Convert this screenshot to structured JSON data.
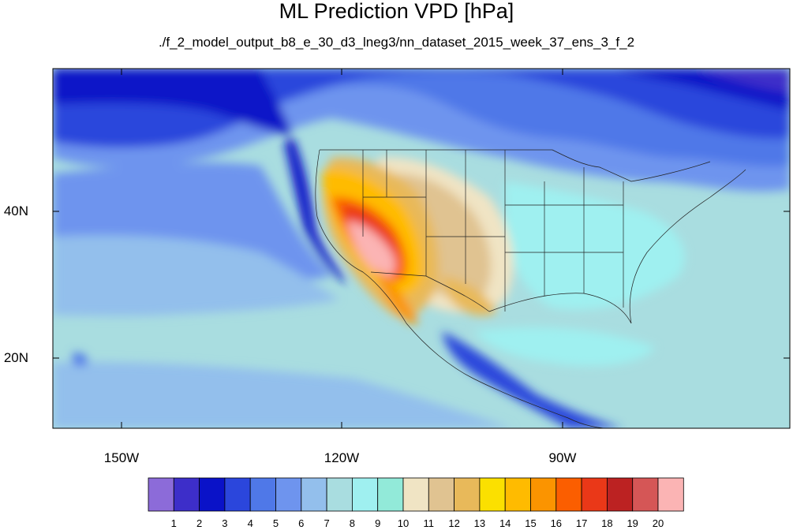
{
  "title": "ML Prediction VPD [hPa]",
  "subtitle": "./f_2_model_output_b8_e_30_d3_lneg3/nn_dataset_2015_week_37_ens_3_f_2",
  "lon_labels": [
    "150W",
    "120W",
    "90W"
  ],
  "lat_labels": [
    "40N",
    "20N"
  ],
  "colorbar": {
    "labels": [
      "1",
      "2",
      "3",
      "4",
      "5",
      "6",
      "7",
      "8",
      "9",
      "10",
      "11",
      "12",
      "13",
      "14",
      "15",
      "16",
      "17",
      "18",
      "19",
      "20"
    ],
    "colors": [
      "#8c6bd9",
      "#3d2ec9",
      "#0a12c8",
      "#2b46dc",
      "#4f78e8",
      "#6e94ee",
      "#93bfec",
      "#a9dde0",
      "#9ff0f0",
      "#92ead9",
      "#f0e4c4",
      "#e0c391",
      "#e8b95a",
      "#fbe000",
      "#ffbb00",
      "#fb9400",
      "#fb5e00",
      "#ea3818",
      "#bc2222",
      "#d55656",
      "#fbb4b4"
    ]
  },
  "map": {
    "ocean_color": "#a9dde0",
    "region": "North America and eastern Pacific"
  }
}
